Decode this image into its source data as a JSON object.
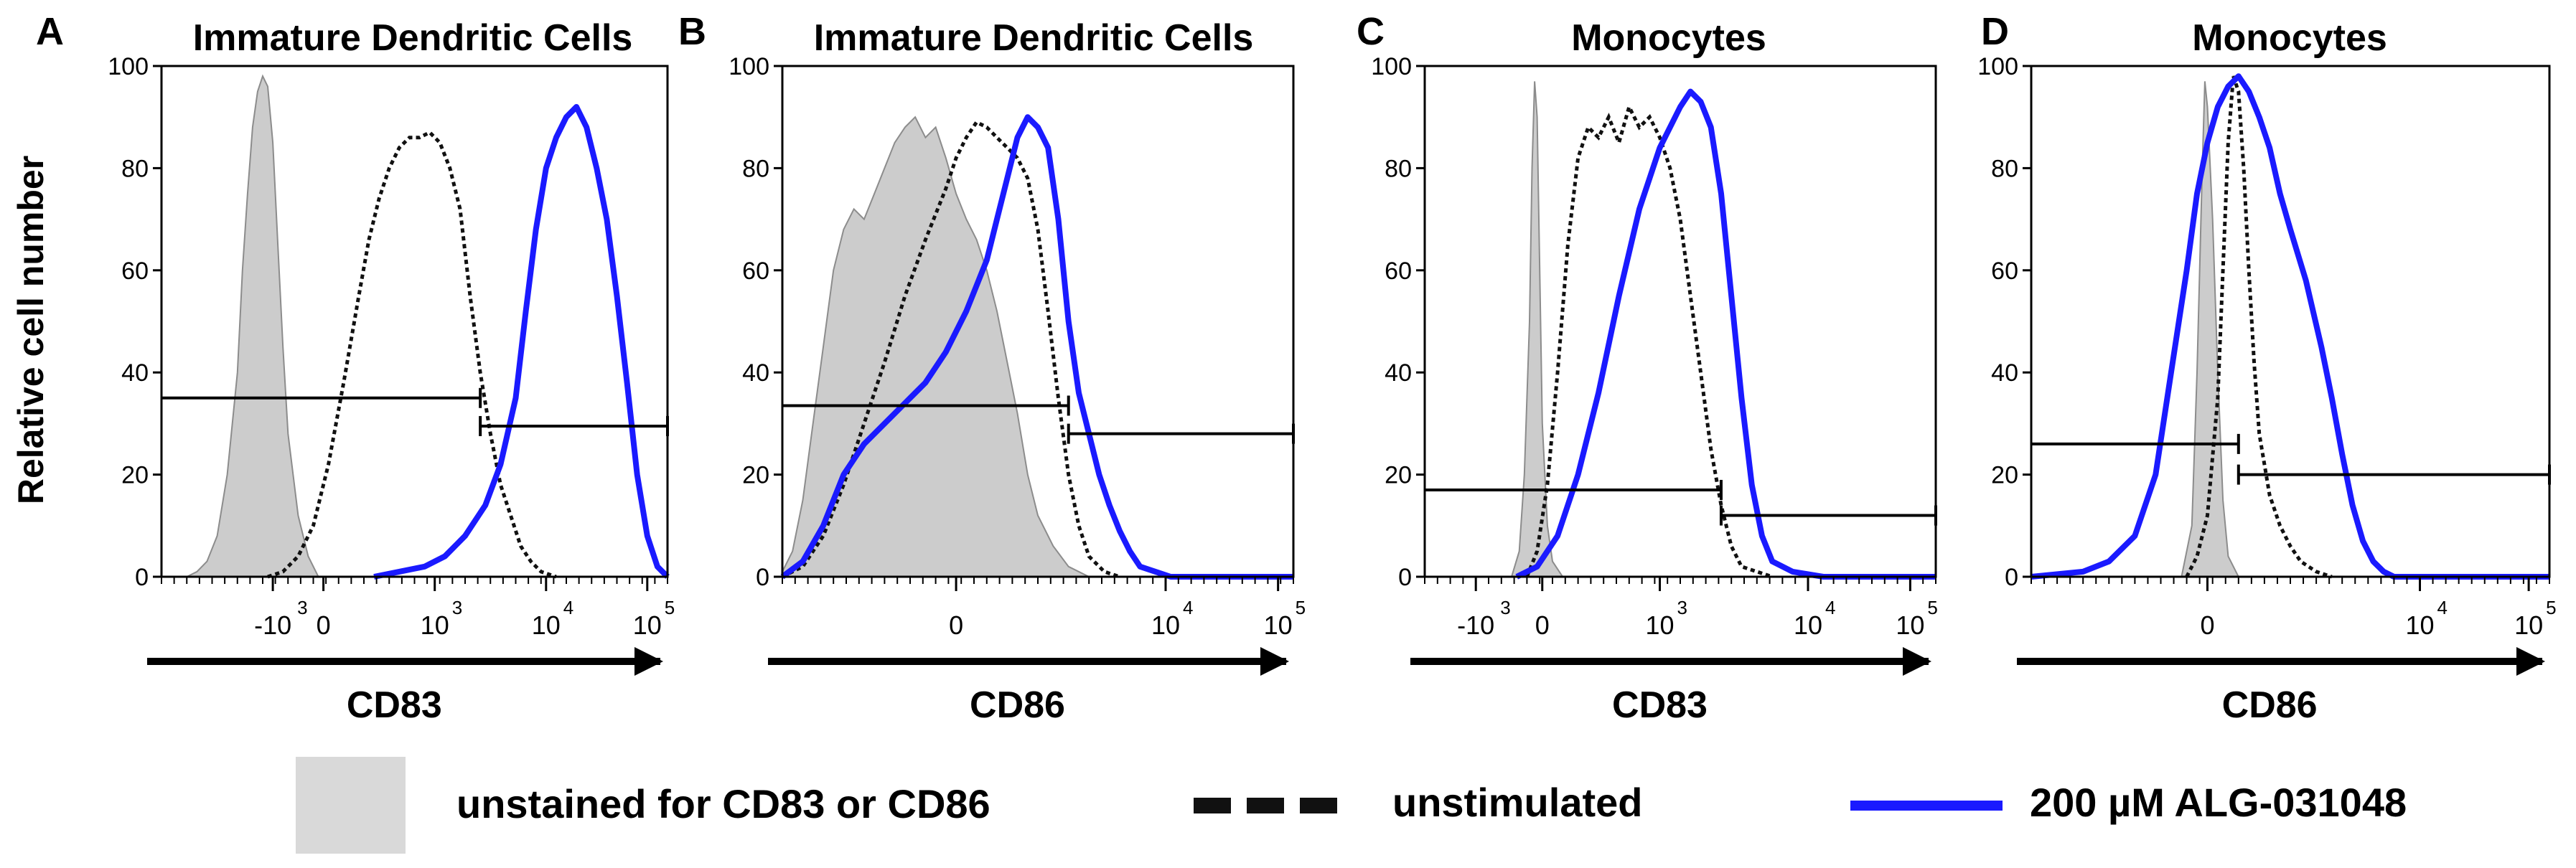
{
  "y_axis_label": "Relative cell number",
  "colors": {
    "unstained_fill": "#cccccc",
    "unstained_stroke": "#8c8c8c",
    "unstimulated": "#111111",
    "alg": "#1a1aff",
    "legend_fill": "#d9d9d9"
  },
  "legend": {
    "unstained": "unstained for CD83 or CD86",
    "unstimulated": "unstimulated",
    "alg": "200 µM ALG-031048"
  },
  "chart_data": [
    {
      "type": "area",
      "panel": "A",
      "title": "Immature Dendritic Cells",
      "xlabel": "CD83",
      "ylim": [
        0,
        100
      ],
      "y_ticks": [
        "0",
        "20",
        "40",
        "60",
        "80",
        "100"
      ],
      "x_ticks": [
        {
          "pos": 0.22,
          "base": "-10",
          "exp": "3"
        },
        {
          "pos": 0.32,
          "base": "0",
          "exp": ""
        },
        {
          "pos": 0.54,
          "base": "10",
          "exp": "3"
        },
        {
          "pos": 0.76,
          "base": "10",
          "exp": "4"
        },
        {
          "pos": 0.96,
          "base": "10",
          "exp": "5"
        }
      ],
      "gates": [
        {
          "x1": 0.0,
          "x2": 0.63,
          "y": 35
        },
        {
          "x1": 0.63,
          "x2": 1.0,
          "y": 29.5
        }
      ],
      "series": [
        {
          "name": "unstained for CD83 or CD86",
          "style": "fill",
          "x": [
            0.05,
            0.07,
            0.09,
            0.11,
            0.13,
            0.15,
            0.16,
            0.17,
            0.18,
            0.19,
            0.2,
            0.21,
            0.22,
            0.23,
            0.24,
            0.25,
            0.27,
            0.29,
            0.31
          ],
          "y": [
            0,
            1,
            3,
            8,
            20,
            40,
            60,
            75,
            88,
            95,
            98,
            96,
            85,
            65,
            45,
            28,
            12,
            4,
            0
          ]
        },
        {
          "name": "unstimulated",
          "style": "dotted",
          "x": [
            0.21,
            0.24,
            0.27,
            0.3,
            0.33,
            0.36,
            0.39,
            0.41,
            0.43,
            0.45,
            0.47,
            0.49,
            0.51,
            0.53,
            0.55,
            0.57,
            0.59,
            0.61,
            0.63,
            0.65,
            0.67,
            0.69,
            0.71,
            0.73,
            0.75,
            0.78
          ],
          "y": [
            0,
            1,
            4,
            10,
            22,
            38,
            55,
            66,
            74,
            80,
            84,
            86,
            86,
            87,
            85,
            80,
            72,
            55,
            40,
            28,
            18,
            12,
            6,
            3,
            1,
            0
          ]
        },
        {
          "name": "200 µM ALG-031048",
          "style": "solid",
          "x": [
            0.42,
            0.47,
            0.52,
            0.56,
            0.6,
            0.64,
            0.67,
            0.7,
            0.72,
            0.74,
            0.76,
            0.78,
            0.8,
            0.82,
            0.84,
            0.86,
            0.88,
            0.9,
            0.92,
            0.94,
            0.96,
            0.98,
            1.0
          ],
          "y": [
            0,
            1,
            2,
            4,
            8,
            14,
            22,
            35,
            52,
            68,
            80,
            86,
            90,
            92,
            88,
            80,
            70,
            55,
            38,
            20,
            8,
            2,
            0
          ]
        }
      ]
    },
    {
      "type": "area",
      "panel": "B",
      "title": "Immature Dendritic Cells",
      "xlabel": "CD86",
      "ylim": [
        0,
        100
      ],
      "y_ticks": [
        "0",
        "20",
        "40",
        "60",
        "80",
        "100"
      ],
      "x_ticks": [
        {
          "pos": 0.34,
          "base": "0",
          "exp": ""
        },
        {
          "pos": 0.75,
          "base": "10",
          "exp": "4"
        },
        {
          "pos": 0.97,
          "base": "10",
          "exp": "5"
        }
      ],
      "gates": [
        {
          "x1": 0.0,
          "x2": 0.56,
          "y": 33.5
        },
        {
          "x1": 0.56,
          "x2": 1.0,
          "y": 28
        }
      ],
      "series": [
        {
          "name": "unstained for CD83 or CD86",
          "style": "fill",
          "x": [
            0.0,
            0.02,
            0.04,
            0.06,
            0.08,
            0.1,
            0.12,
            0.14,
            0.16,
            0.18,
            0.2,
            0.22,
            0.24,
            0.26,
            0.28,
            0.3,
            0.32,
            0.34,
            0.36,
            0.38,
            0.4,
            0.42,
            0.44,
            0.46,
            0.48,
            0.5,
            0.53,
            0.56,
            0.6
          ],
          "y": [
            1,
            5,
            15,
            30,
            45,
            60,
            68,
            72,
            70,
            75,
            80,
            85,
            88,
            90,
            86,
            88,
            82,
            75,
            70,
            66,
            60,
            52,
            42,
            32,
            20,
            12,
            6,
            2,
            0
          ]
        },
        {
          "name": "unstimulated",
          "style": "dotted",
          "x": [
            0.0,
            0.04,
            0.08,
            0.12,
            0.16,
            0.2,
            0.24,
            0.28,
            0.32,
            0.34,
            0.36,
            0.38,
            0.4,
            0.42,
            0.44,
            0.46,
            0.48,
            0.5,
            0.52,
            0.54,
            0.56,
            0.58,
            0.6,
            0.63,
            0.66
          ],
          "y": [
            0,
            2,
            8,
            18,
            30,
            42,
            55,
            66,
            76,
            82,
            86,
            89,
            88,
            86,
            84,
            82,
            78,
            68,
            52,
            35,
            20,
            10,
            4,
            1,
            0
          ]
        },
        {
          "name": "200 µM ALG-031048",
          "style": "solid",
          "x": [
            0.0,
            0.04,
            0.08,
            0.12,
            0.16,
            0.2,
            0.24,
            0.28,
            0.32,
            0.36,
            0.4,
            0.42,
            0.44,
            0.46,
            0.48,
            0.5,
            0.52,
            0.54,
            0.56,
            0.58,
            0.6,
            0.62,
            0.64,
            0.66,
            0.68,
            0.7,
            0.73,
            0.76,
            1.0
          ],
          "y": [
            0,
            3,
            10,
            20,
            26,
            30,
            34,
            38,
            44,
            52,
            62,
            70,
            78,
            86,
            90,
            88,
            84,
            70,
            50,
            36,
            28,
            20,
            14,
            9,
            5,
            2,
            1,
            0,
            0
          ]
        }
      ]
    },
    {
      "type": "area",
      "panel": "C",
      "title": "Monocytes",
      "xlabel": "CD83",
      "ylim": [
        0,
        100
      ],
      "y_ticks": [
        "0",
        "20",
        "40",
        "60",
        "80",
        "100"
      ],
      "x_ticks": [
        {
          "pos": 0.1,
          "base": "-10",
          "exp": "3"
        },
        {
          "pos": 0.23,
          "base": "0",
          "exp": ""
        },
        {
          "pos": 0.46,
          "base": "10",
          "exp": "3"
        },
        {
          "pos": 0.75,
          "base": "10",
          "exp": "4"
        },
        {
          "pos": 0.95,
          "base": "10",
          "exp": "5"
        }
      ],
      "gates": [
        {
          "x1": 0.0,
          "x2": 0.58,
          "y": 17
        },
        {
          "x1": 0.58,
          "x2": 1.0,
          "y": 12
        }
      ],
      "series": [
        {
          "name": "unstained for CD83 or CD86",
          "style": "fill",
          "x": [
            0.17,
            0.185,
            0.195,
            0.205,
            0.21,
            0.215,
            0.22,
            0.225,
            0.23,
            0.24,
            0.25,
            0.27
          ],
          "y": [
            0,
            5,
            20,
            50,
            80,
            97,
            90,
            60,
            30,
            10,
            3,
            0
          ]
        },
        {
          "name": "unstimulated",
          "style": "dotted",
          "x": [
            0.2,
            0.22,
            0.24,
            0.26,
            0.28,
            0.3,
            0.32,
            0.34,
            0.36,
            0.38,
            0.4,
            0.42,
            0.44,
            0.46,
            0.48,
            0.5,
            0.52,
            0.54,
            0.56,
            0.58,
            0.6,
            0.62,
            0.65,
            0.68
          ],
          "y": [
            0,
            5,
            18,
            40,
            65,
            82,
            88,
            86,
            90,
            85,
            92,
            88,
            90,
            86,
            80,
            70,
            55,
            40,
            25,
            14,
            6,
            2,
            1,
            0
          ]
        },
        {
          "name": "200 µM ALG-031048",
          "style": "solid",
          "x": [
            0.18,
            0.22,
            0.26,
            0.3,
            0.34,
            0.38,
            0.42,
            0.46,
            0.5,
            0.52,
            0.54,
            0.56,
            0.58,
            0.6,
            0.62,
            0.64,
            0.66,
            0.68,
            0.72,
            0.78,
            1.0
          ],
          "y": [
            0,
            2,
            8,
            20,
            36,
            55,
            72,
            84,
            92,
            95,
            93,
            88,
            75,
            55,
            35,
            18,
            8,
            3,
            1,
            0,
            0
          ]
        }
      ]
    },
    {
      "type": "area",
      "panel": "D",
      "title": "Monocytes",
      "xlabel": "CD86",
      "ylim": [
        0,
        100
      ],
      "y_ticks": [
        "0",
        "20",
        "40",
        "60",
        "80",
        "100"
      ],
      "x_ticks": [
        {
          "pos": 0.34,
          "base": "0",
          "exp": ""
        },
        {
          "pos": 0.75,
          "base": "10",
          "exp": "4"
        },
        {
          "pos": 0.96,
          "base": "10",
          "exp": "5"
        }
      ],
      "gates": [
        {
          "x1": 0.0,
          "x2": 0.4,
          "y": 26
        },
        {
          "x1": 0.4,
          "x2": 1.0,
          "y": 20
        }
      ],
      "series": [
        {
          "name": "unstained for CD83 or CD86",
          "style": "fill",
          "x": [
            0.29,
            0.31,
            0.32,
            0.33,
            0.335,
            0.34,
            0.35,
            0.36,
            0.37,
            0.38,
            0.4
          ],
          "y": [
            0,
            10,
            40,
            80,
            97,
            92,
            70,
            40,
            15,
            4,
            0
          ]
        },
        {
          "name": "unstimulated",
          "style": "dotted",
          "x": [
            0.3,
            0.32,
            0.34,
            0.36,
            0.37,
            0.38,
            0.39,
            0.4,
            0.41,
            0.42,
            0.43,
            0.44,
            0.46,
            0.48,
            0.5,
            0.52,
            0.55,
            0.58
          ],
          "y": [
            0,
            4,
            12,
            35,
            60,
            85,
            98,
            95,
            80,
            60,
            42,
            28,
            16,
            10,
            6,
            3,
            1,
            0
          ]
        },
        {
          "name": "200 µM ALG-031048",
          "style": "solid",
          "x": [
            0.0,
            0.1,
            0.15,
            0.2,
            0.24,
            0.27,
            0.3,
            0.32,
            0.34,
            0.36,
            0.38,
            0.4,
            0.42,
            0.44,
            0.46,
            0.48,
            0.5,
            0.53,
            0.56,
            0.58,
            0.6,
            0.62,
            0.64,
            0.66,
            0.68,
            0.7,
            1.0
          ],
          "y": [
            0,
            1,
            3,
            8,
            20,
            40,
            60,
            75,
            85,
            92,
            96,
            98,
            95,
            90,
            84,
            75,
            68,
            58,
            45,
            35,
            24,
            14,
            7,
            3,
            1,
            0,
            0
          ]
        }
      ]
    }
  ]
}
